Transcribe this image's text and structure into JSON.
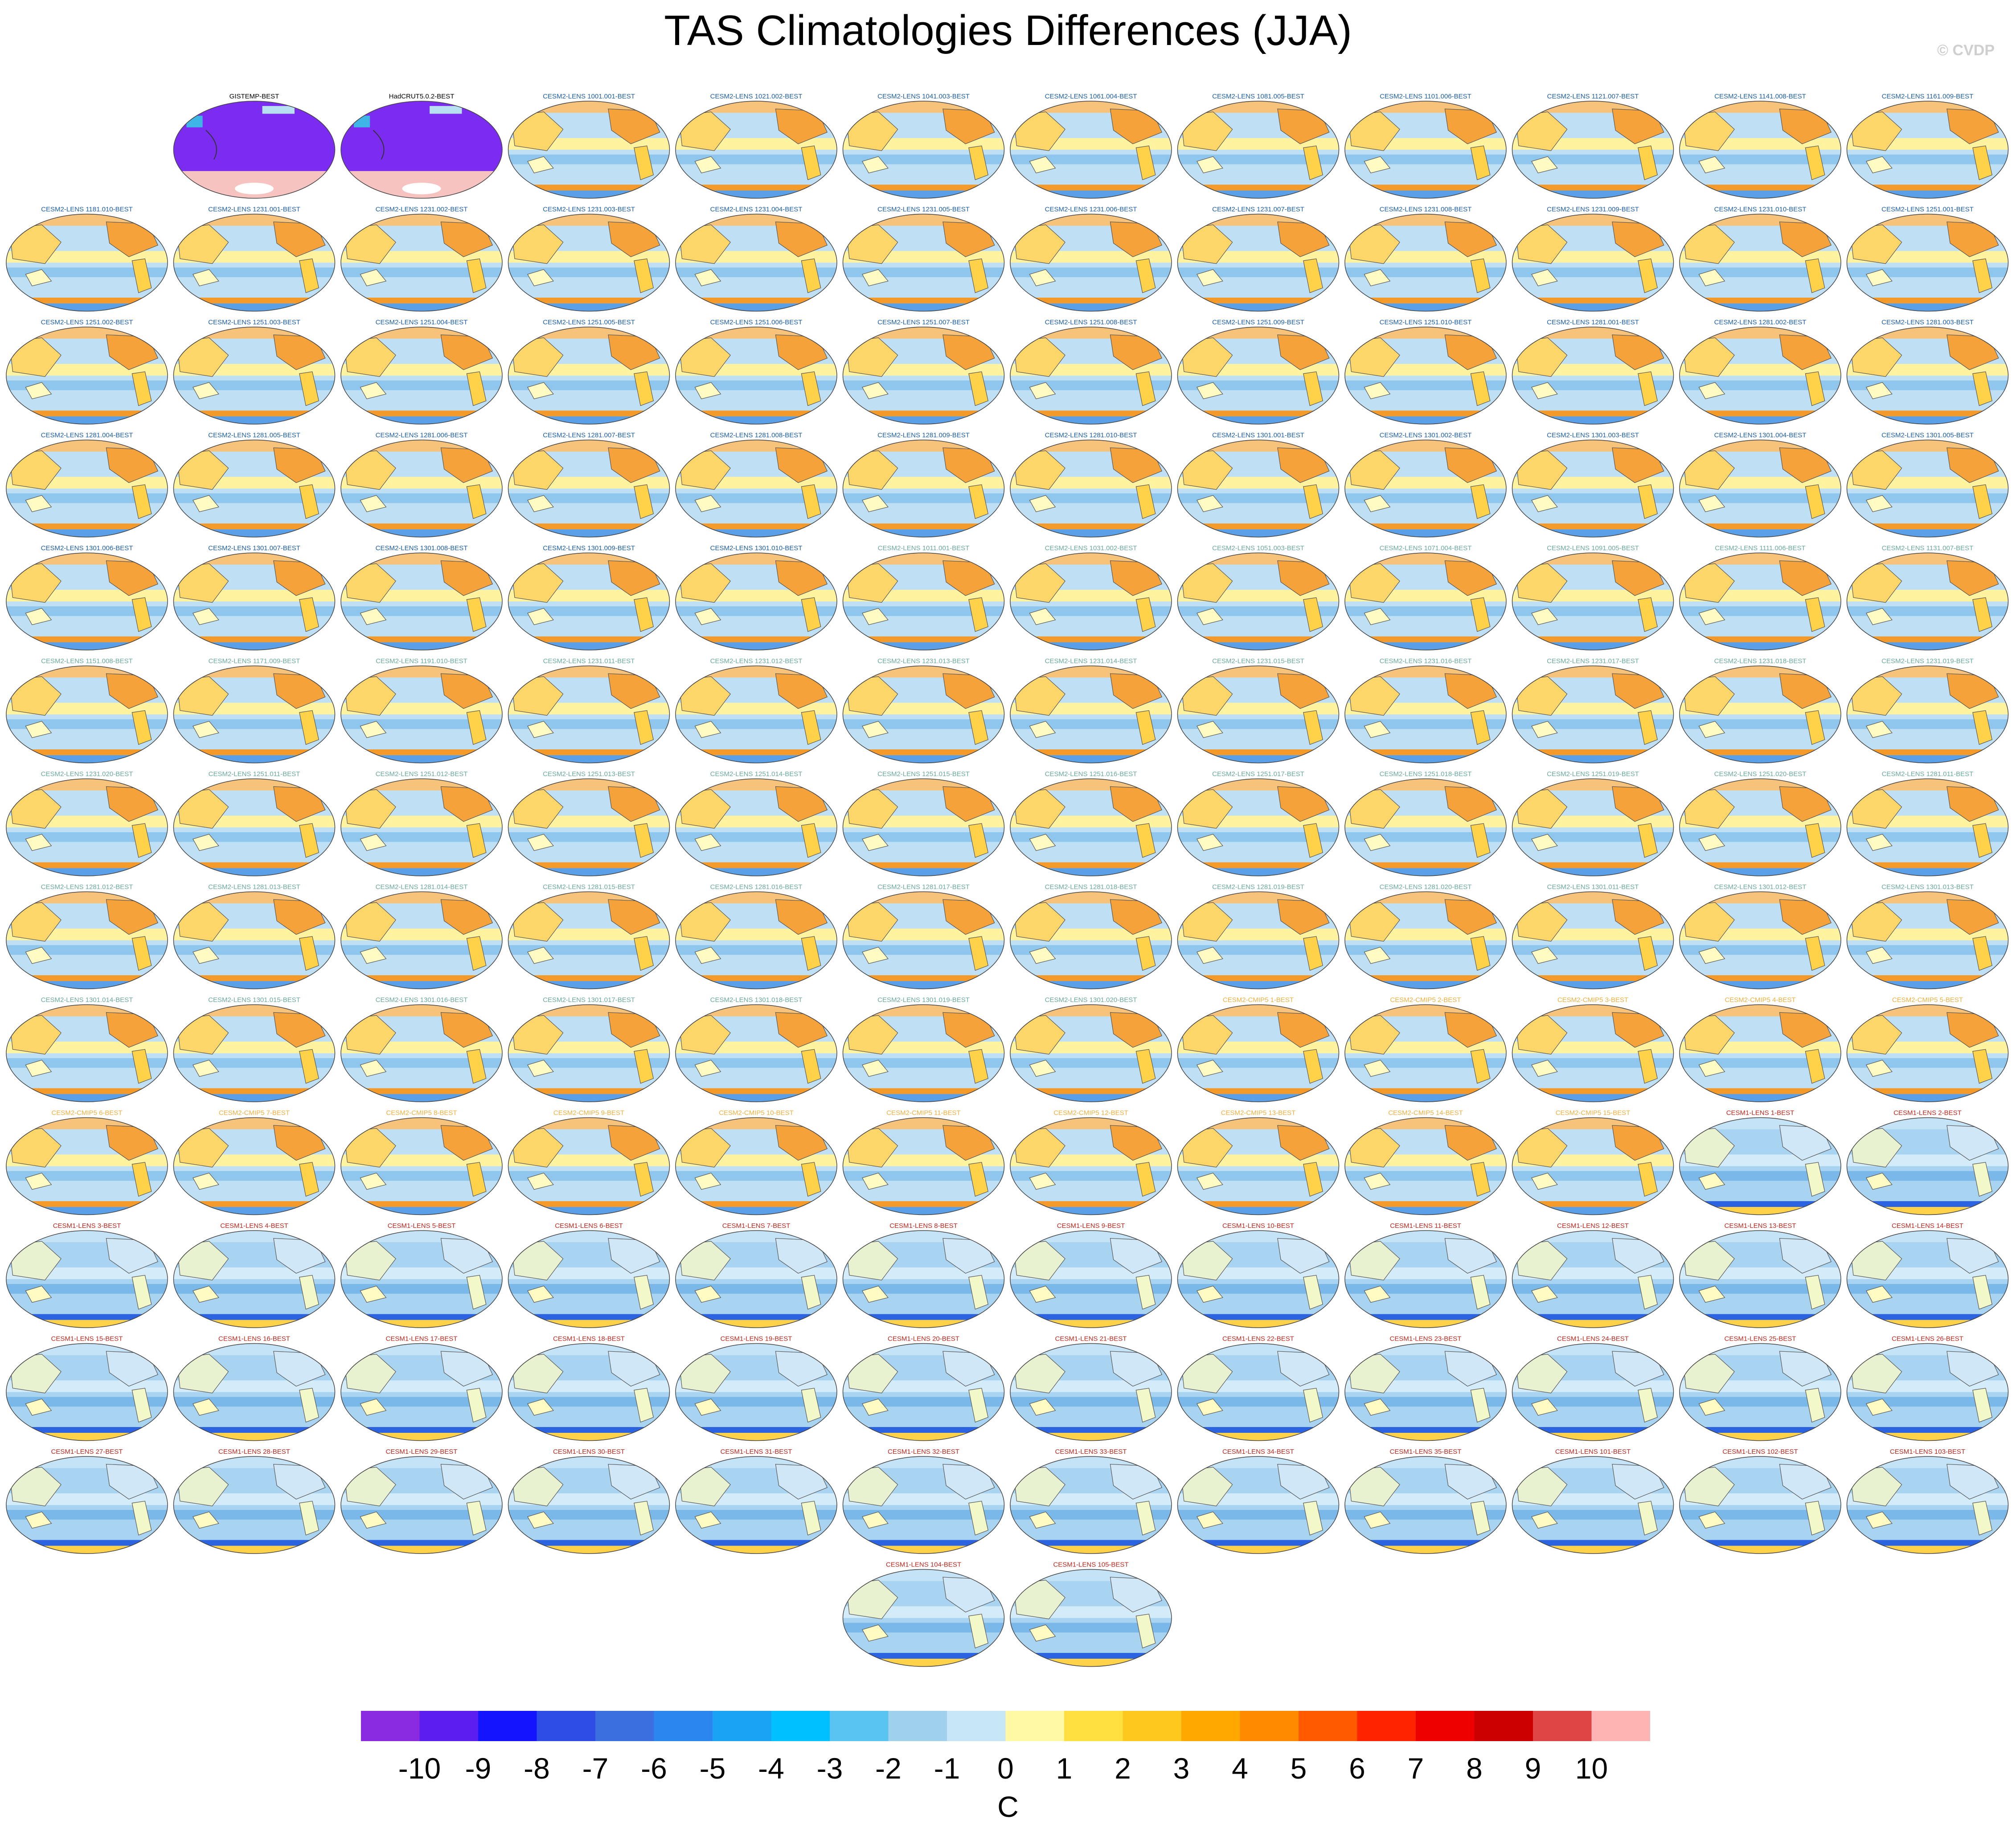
{
  "title": "TAS Climatologies Differences (JJA)",
  "credit": "© CVDP",
  "panels": [
    {
      "label": "GISTEMP-BEST",
      "kind": "obs"
    },
    {
      "label": "HadCRUT5.0.2-BEST",
      "kind": "obs"
    },
    {
      "label": "CESM2-LENS 1001.001-BEST",
      "kind": "cesm2a"
    },
    {
      "label": "CESM2-LENS 1021.002-BEST",
      "kind": "cesm2a"
    },
    {
      "label": "CESM2-LENS 1041.003-BEST",
      "kind": "cesm2a"
    },
    {
      "label": "CESM2-LENS 1061.004-BEST",
      "kind": "cesm2a"
    },
    {
      "label": "CESM2-LENS 1081.005-BEST",
      "kind": "cesm2a"
    },
    {
      "label": "CESM2-LENS 1101.006-BEST",
      "kind": "cesm2a"
    },
    {
      "label": "CESM2-LENS 1121.007-BEST",
      "kind": "cesm2a"
    },
    {
      "label": "CESM2-LENS 1141.008-BEST",
      "kind": "cesm2a"
    },
    {
      "label": "CESM2-LENS 1161.009-BEST",
      "kind": "cesm2a"
    },
    {
      "label": "CESM2-LENS 1181.010-BEST",
      "kind": "cesm2a"
    },
    {
      "label": "CESM2-LENS 1231.001-BEST",
      "kind": "cesm2a"
    },
    {
      "label": "CESM2-LENS 1231.002-BEST",
      "kind": "cesm2a"
    },
    {
      "label": "CESM2-LENS 1231.003-BEST",
      "kind": "cesm2a"
    },
    {
      "label": "CESM2-LENS 1231.004-BEST",
      "kind": "cesm2a"
    },
    {
      "label": "CESM2-LENS 1231.005-BEST",
      "kind": "cesm2a"
    },
    {
      "label": "CESM2-LENS 1231.006-BEST",
      "kind": "cesm2a"
    },
    {
      "label": "CESM2-LENS 1231.007-BEST",
      "kind": "cesm2a"
    },
    {
      "label": "CESM2-LENS 1231.008-BEST",
      "kind": "cesm2a"
    },
    {
      "label": "CESM2-LENS 1231.009-BEST",
      "kind": "cesm2a"
    },
    {
      "label": "CESM2-LENS 1231.010-BEST",
      "kind": "cesm2a"
    },
    {
      "label": "CESM2-LENS 1251.001-BEST",
      "kind": "cesm2a"
    },
    {
      "label": "CESM2-LENS 1251.002-BEST",
      "kind": "cesm2a"
    },
    {
      "label": "CESM2-LENS 1251.003-BEST",
      "kind": "cesm2a"
    },
    {
      "label": "CESM2-LENS 1251.004-BEST",
      "kind": "cesm2a"
    },
    {
      "label": "CESM2-LENS 1251.005-BEST",
      "kind": "cesm2a"
    },
    {
      "label": "CESM2-LENS 1251.006-BEST",
      "kind": "cesm2a"
    },
    {
      "label": "CESM2-LENS 1251.007-BEST",
      "kind": "cesm2a"
    },
    {
      "label": "CESM2-LENS 1251.008-BEST",
      "kind": "cesm2a"
    },
    {
      "label": "CESM2-LENS 1251.009-BEST",
      "kind": "cesm2a"
    },
    {
      "label": "CESM2-LENS 1251.010-BEST",
      "kind": "cesm2a"
    },
    {
      "label": "CESM2-LENS 1281.001-BEST",
      "kind": "cesm2a"
    },
    {
      "label": "CESM2-LENS 1281.002-BEST",
      "kind": "cesm2a"
    },
    {
      "label": "CESM2-LENS 1281.003-BEST",
      "kind": "cesm2a"
    },
    {
      "label": "CESM2-LENS 1281.004-BEST",
      "kind": "cesm2a"
    },
    {
      "label": "CESM2-LENS 1281.005-BEST",
      "kind": "cesm2a"
    },
    {
      "label": "CESM2-LENS 1281.006-BEST",
      "kind": "cesm2a"
    },
    {
      "label": "CESM2-LENS 1281.007-BEST",
      "kind": "cesm2a"
    },
    {
      "label": "CESM2-LENS 1281.008-BEST",
      "kind": "cesm2a"
    },
    {
      "label": "CESM2-LENS 1281.009-BEST",
      "kind": "cesm2a"
    },
    {
      "label": "CESM2-LENS 1281.010-BEST",
      "kind": "cesm2a"
    },
    {
      "label": "CESM2-LENS 1301.001-BEST",
      "kind": "cesm2a"
    },
    {
      "label": "CESM2-LENS 1301.002-BEST",
      "kind": "cesm2a"
    },
    {
      "label": "CESM2-LENS 1301.003-BEST",
      "kind": "cesm2a"
    },
    {
      "label": "CESM2-LENS 1301.004-BEST",
      "kind": "cesm2a"
    },
    {
      "label": "CESM2-LENS 1301.005-BEST",
      "kind": "cesm2a"
    },
    {
      "label": "CESM2-LENS 1301.006-BEST",
      "kind": "cesm2a"
    },
    {
      "label": "CESM2-LENS 1301.007-BEST",
      "kind": "cesm2a"
    },
    {
      "label": "CESM2-LENS 1301.008-BEST",
      "kind": "cesm2a"
    },
    {
      "label": "CESM2-LENS 1301.009-BEST",
      "kind": "cesm2a"
    },
    {
      "label": "CESM2-LENS 1301.010-BEST",
      "kind": "cesm2a"
    },
    {
      "label": "CESM2-LENS 1011.001-BEST",
      "kind": "cesm2b"
    },
    {
      "label": "CESM2-LENS 1031.002-BEST",
      "kind": "cesm2b"
    },
    {
      "label": "CESM2-LENS 1051.003-BEST",
      "kind": "cesm2b"
    },
    {
      "label": "CESM2-LENS 1071.004-BEST",
      "kind": "cesm2b"
    },
    {
      "label": "CESM2-LENS 1091.005-BEST",
      "kind": "cesm2b"
    },
    {
      "label": "CESM2-LENS 1111.006-BEST",
      "kind": "cesm2b"
    },
    {
      "label": "CESM2-LENS 1131.007-BEST",
      "kind": "cesm2b"
    },
    {
      "label": "CESM2-LENS 1151.008-BEST",
      "kind": "cesm2b"
    },
    {
      "label": "CESM2-LENS 1171.009-BEST",
      "kind": "cesm2b"
    },
    {
      "label": "CESM2-LENS 1191.010-BEST",
      "kind": "cesm2b"
    },
    {
      "label": "CESM2-LENS 1231.011-BEST",
      "kind": "cesm2b"
    },
    {
      "label": "CESM2-LENS 1231.012-BEST",
      "kind": "cesm2b"
    },
    {
      "label": "CESM2-LENS 1231.013-BEST",
      "kind": "cesm2b"
    },
    {
      "label": "CESM2-LENS 1231.014-BEST",
      "kind": "cesm2b"
    },
    {
      "label": "CESM2-LENS 1231.015-BEST",
      "kind": "cesm2b"
    },
    {
      "label": "CESM2-LENS 1231.016-BEST",
      "kind": "cesm2b"
    },
    {
      "label": "CESM2-LENS 1231.017-BEST",
      "kind": "cesm2b"
    },
    {
      "label": "CESM2-LENS 1231.018-BEST",
      "kind": "cesm2b"
    },
    {
      "label": "CESM2-LENS 1231.019-BEST",
      "kind": "cesm2b"
    },
    {
      "label": "CESM2-LENS 1231.020-BEST",
      "kind": "cesm2b"
    },
    {
      "label": "CESM2-LENS 1251.011-BEST",
      "kind": "cesm2b"
    },
    {
      "label": "CESM2-LENS 1251.012-BEST",
      "kind": "cesm2b"
    },
    {
      "label": "CESM2-LENS 1251.013-BEST",
      "kind": "cesm2b"
    },
    {
      "label": "CESM2-LENS 1251.014-BEST",
      "kind": "cesm2b"
    },
    {
      "label": "CESM2-LENS 1251.015-BEST",
      "kind": "cesm2b"
    },
    {
      "label": "CESM2-LENS 1251.016-BEST",
      "kind": "cesm2b"
    },
    {
      "label": "CESM2-LENS 1251.017-BEST",
      "kind": "cesm2b"
    },
    {
      "label": "CESM2-LENS 1251.018-BEST",
      "kind": "cesm2b"
    },
    {
      "label": "CESM2-LENS 1251.019-BEST",
      "kind": "cesm2b"
    },
    {
      "label": "CESM2-LENS 1251.020-BEST",
      "kind": "cesm2b"
    },
    {
      "label": "CESM2-LENS 1281.011-BEST",
      "kind": "cesm2b"
    },
    {
      "label": "CESM2-LENS 1281.012-BEST",
      "kind": "cesm2b"
    },
    {
      "label": "CESM2-LENS 1281.013-BEST",
      "kind": "cesm2b"
    },
    {
      "label": "CESM2-LENS 1281.014-BEST",
      "kind": "cesm2b"
    },
    {
      "label": "CESM2-LENS 1281.015-BEST",
      "kind": "cesm2b"
    },
    {
      "label": "CESM2-LENS 1281.016-BEST",
      "kind": "cesm2b"
    },
    {
      "label": "CESM2-LENS 1281.017-BEST",
      "kind": "cesm2b"
    },
    {
      "label": "CESM2-LENS 1281.018-BEST",
      "kind": "cesm2b"
    },
    {
      "label": "CESM2-LENS 1281.019-BEST",
      "kind": "cesm2b"
    },
    {
      "label": "CESM2-LENS 1281.020-BEST",
      "kind": "cesm2b"
    },
    {
      "label": "CESM2-LENS 1301.011-BEST",
      "kind": "cesm2b"
    },
    {
      "label": "CESM2-LENS 1301.012-BEST",
      "kind": "cesm2b"
    },
    {
      "label": "CESM2-LENS 1301.013-BEST",
      "kind": "cesm2b"
    },
    {
      "label": "CESM2-LENS 1301.014-BEST",
      "kind": "cesm2b"
    },
    {
      "label": "CESM2-LENS 1301.015-BEST",
      "kind": "cesm2b"
    },
    {
      "label": "CESM2-LENS 1301.016-BEST",
      "kind": "cesm2b"
    },
    {
      "label": "CESM2-LENS 1301.017-BEST",
      "kind": "cesm2b"
    },
    {
      "label": "CESM2-LENS 1301.018-BEST",
      "kind": "cesm2b"
    },
    {
      "label": "CESM2-LENS 1301.019-BEST",
      "kind": "cesm2b"
    },
    {
      "label": "CESM2-LENS 1301.020-BEST",
      "kind": "cesm2b"
    },
    {
      "label": "CESM2-CMIP5 1-BEST",
      "kind": "cmip5"
    },
    {
      "label": "CESM2-CMIP5 2-BEST",
      "kind": "cmip5"
    },
    {
      "label": "CESM2-CMIP5 3-BEST",
      "kind": "cmip5"
    },
    {
      "label": "CESM2-CMIP5 4-BEST",
      "kind": "cmip5"
    },
    {
      "label": "CESM2-CMIP5 5-BEST",
      "kind": "cmip5"
    },
    {
      "label": "CESM2-CMIP5 6-BEST",
      "kind": "cmip5"
    },
    {
      "label": "CESM2-CMIP5 7-BEST",
      "kind": "cmip5"
    },
    {
      "label": "CESM2-CMIP5 8-BEST",
      "kind": "cmip5"
    },
    {
      "label": "CESM2-CMIP5 9-BEST",
      "kind": "cmip5"
    },
    {
      "label": "CESM2-CMIP5 10-BEST",
      "kind": "cmip5"
    },
    {
      "label": "CESM2-CMIP5 11-BEST",
      "kind": "cmip5"
    },
    {
      "label": "CESM2-CMIP5 12-BEST",
      "kind": "cmip5"
    },
    {
      "label": "CESM2-CMIP5 13-BEST",
      "kind": "cmip5"
    },
    {
      "label": "CESM2-CMIP5 14-BEST",
      "kind": "cmip5"
    },
    {
      "label": "CESM2-CMIP5 15-BEST",
      "kind": "cmip5"
    },
    {
      "label": "CESM1-LENS 1-BEST",
      "kind": "cesm1"
    },
    {
      "label": "CESM1-LENS 2-BEST",
      "kind": "cesm1"
    },
    {
      "label": "CESM1-LENS 3-BEST",
      "kind": "cesm1"
    },
    {
      "label": "CESM1-LENS 4-BEST",
      "kind": "cesm1"
    },
    {
      "label": "CESM1-LENS 5-BEST",
      "kind": "cesm1"
    },
    {
      "label": "CESM1-LENS 6-BEST",
      "kind": "cesm1"
    },
    {
      "label": "CESM1-LENS 7-BEST",
      "kind": "cesm1"
    },
    {
      "label": "CESM1-LENS 8-BEST",
      "kind": "cesm1"
    },
    {
      "label": "CESM1-LENS 9-BEST",
      "kind": "cesm1"
    },
    {
      "label": "CESM1-LENS 10-BEST",
      "kind": "cesm1"
    },
    {
      "label": "CESM1-LENS 11-BEST",
      "kind": "cesm1"
    },
    {
      "label": "CESM1-LENS 12-BEST",
      "kind": "cesm1"
    },
    {
      "label": "CESM1-LENS 13-BEST",
      "kind": "cesm1"
    },
    {
      "label": "CESM1-LENS 14-BEST",
      "kind": "cesm1"
    },
    {
      "label": "CESM1-LENS 15-BEST",
      "kind": "cesm1"
    },
    {
      "label": "CESM1-LENS 16-BEST",
      "kind": "cesm1"
    },
    {
      "label": "CESM1-LENS 17-BEST",
      "kind": "cesm1"
    },
    {
      "label": "CESM1-LENS 18-BEST",
      "kind": "cesm1"
    },
    {
      "label": "CESM1-LENS 19-BEST",
      "kind": "cesm1"
    },
    {
      "label": "CESM1-LENS 20-BEST",
      "kind": "cesm1"
    },
    {
      "label": "CESM1-LENS 21-BEST",
      "kind": "cesm1"
    },
    {
      "label": "CESM1-LENS 22-BEST",
      "kind": "cesm1"
    },
    {
      "label": "CESM1-LENS 23-BEST",
      "kind": "cesm1"
    },
    {
      "label": "CESM1-LENS 24-BEST",
      "kind": "cesm1"
    },
    {
      "label": "CESM1-LENS 25-BEST",
      "kind": "cesm1"
    },
    {
      "label": "CESM1-LENS 26-BEST",
      "kind": "cesm1"
    },
    {
      "label": "CESM1-LENS 27-BEST",
      "kind": "cesm1"
    },
    {
      "label": "CESM1-LENS 28-BEST",
      "kind": "cesm1"
    },
    {
      "label": "CESM1-LENS 29-BEST",
      "kind": "cesm1"
    },
    {
      "label": "CESM1-LENS 30-BEST",
      "kind": "cesm1"
    },
    {
      "label": "CESM1-LENS 31-BEST",
      "kind": "cesm1"
    },
    {
      "label": "CESM1-LENS 32-BEST",
      "kind": "cesm1"
    },
    {
      "label": "CESM1-LENS 33-BEST",
      "kind": "cesm1"
    },
    {
      "label": "CESM1-LENS 34-BEST",
      "kind": "cesm1"
    },
    {
      "label": "CESM1-LENS 35-BEST",
      "kind": "cesm1"
    },
    {
      "label": "CESM1-LENS 101-BEST",
      "kind": "cesm1"
    },
    {
      "label": "CESM1-LENS 102-BEST",
      "kind": "cesm1"
    },
    {
      "label": "CESM1-LENS 103-BEST",
      "kind": "cesm1"
    },
    {
      "label": "CESM1-LENS 104-BEST",
      "kind": "cesm1"
    },
    {
      "label": "CESM1-LENS 105-BEST",
      "kind": "cesm1"
    }
  ],
  "label_colors": {
    "obs": "#000000",
    "cesm2a": "#1c5fa8",
    "cesm2b": "#6aaa9e",
    "cmip5": "#f0b040",
    "cesm1": "#c0281e"
  },
  "colorbar": {
    "unit": "C",
    "ticks": [
      "-10",
      "-9",
      "-8",
      "-7",
      "-6",
      "-5",
      "-4",
      "-3",
      "-2",
      "-1",
      "0",
      "1",
      "2",
      "3",
      "4",
      "5",
      "6",
      "7",
      "8",
      "9",
      "10"
    ],
    "colors": [
      "#8a2be2",
      "#5a1ef0",
      "#1414ff",
      "#2e4ce6",
      "#3b6fe0",
      "#2b86f0",
      "#1aa2f5",
      "#00c0ff",
      "#5ac4f0",
      "#9fd1ee",
      "#c6e5f6",
      "#fff9a6",
      "#ffe040",
      "#ffc81e",
      "#ffa800",
      "#ff8a00",
      "#ff5a00",
      "#ff2400",
      "#ee0000",
      "#cc0000",
      "#dd4444",
      "#ffb4b4"
    ]
  }
}
